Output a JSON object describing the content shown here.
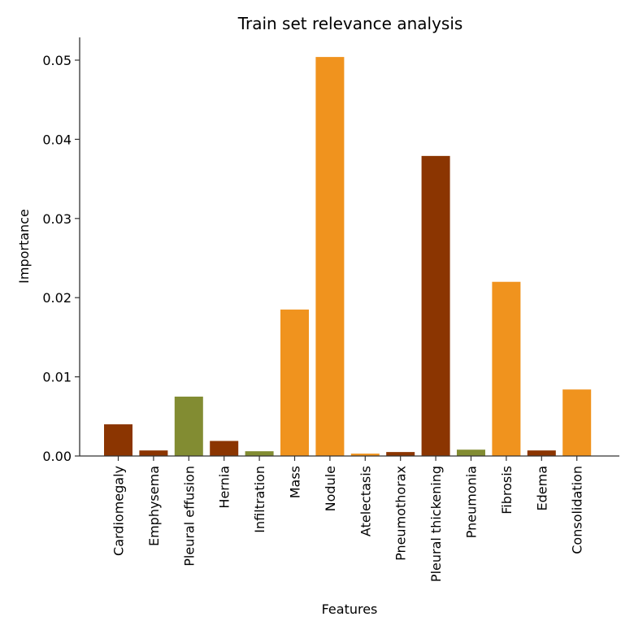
{
  "chart_data": {
    "type": "bar",
    "title": "Train set relevance analysis",
    "xlabel": "Features",
    "ylabel": "Importance",
    "ylim": [
      0,
      0.053
    ],
    "yticks": [
      "0.00",
      "0.01",
      "0.02",
      "0.03",
      "0.04",
      "0.05"
    ],
    "grid": false,
    "legend": null,
    "categories": [
      "Cardiomegaly",
      "Emphysema",
      "Pleural effusion",
      "Hernia",
      "Infiltration",
      "Mass",
      "Nodule",
      "Atelectasis",
      "Pneumothorax",
      "Pleural thickening",
      "Pneumonia",
      "Fibrosis",
      "Edema",
      "Consolidation"
    ],
    "values": [
      0.004,
      0.0007,
      0.0075,
      0.0019,
      0.0006,
      0.0185,
      0.0504,
      0.0003,
      0.0005,
      0.0379,
      0.0008,
      0.022,
      0.0007,
      0.0084
    ],
    "colors": [
      "#8b3501",
      "#8b3501",
      "#828c32",
      "#8b3501",
      "#828c32",
      "#f0931e",
      "#f0931e",
      "#f0931e",
      "#8b3501",
      "#8b3501",
      "#828c32",
      "#f0931e",
      "#8b3501",
      "#f0931e"
    ]
  }
}
